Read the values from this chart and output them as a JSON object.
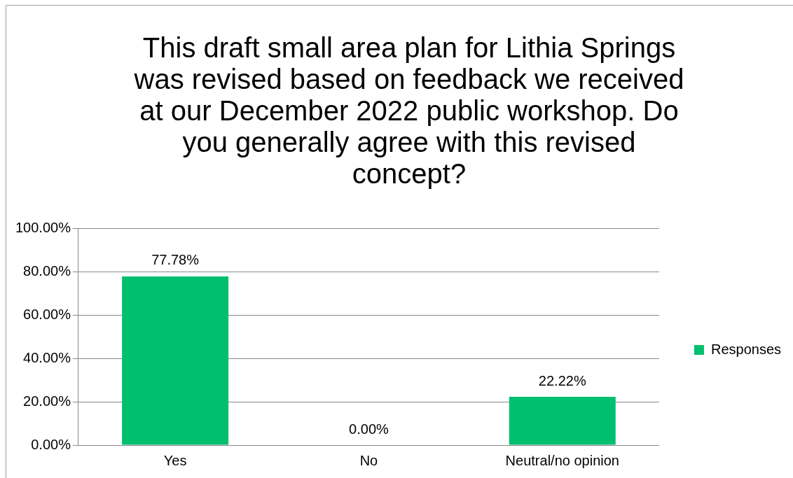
{
  "chart_data": {
    "type": "bar",
    "title": "This draft small area plan for Lithia Springs was revised based on feedback we received at our December 2022 public workshop. Do you generally agree with this revised concept?",
    "categories": [
      "Yes",
      "No",
      "Neutral/no opinion"
    ],
    "series": [
      {
        "name": "Responses",
        "color": "#00bf6f",
        "values": [
          77.78,
          0,
          22.22
        ],
        "value_labels": [
          "77.78%",
          "0.00%",
          "22.22%"
        ]
      }
    ],
    "ylim": [
      0,
      100
    ],
    "yticks": [
      {
        "value": 0,
        "label": "0.00%"
      },
      {
        "value": 20,
        "label": "20.00%"
      },
      {
        "value": 40,
        "label": "40.00%"
      },
      {
        "value": 60,
        "label": "60.00%"
      },
      {
        "value": 80,
        "label": "80.00%"
      },
      {
        "value": 100,
        "label": "100.00%"
      }
    ],
    "grid": "y",
    "legend": "right"
  }
}
